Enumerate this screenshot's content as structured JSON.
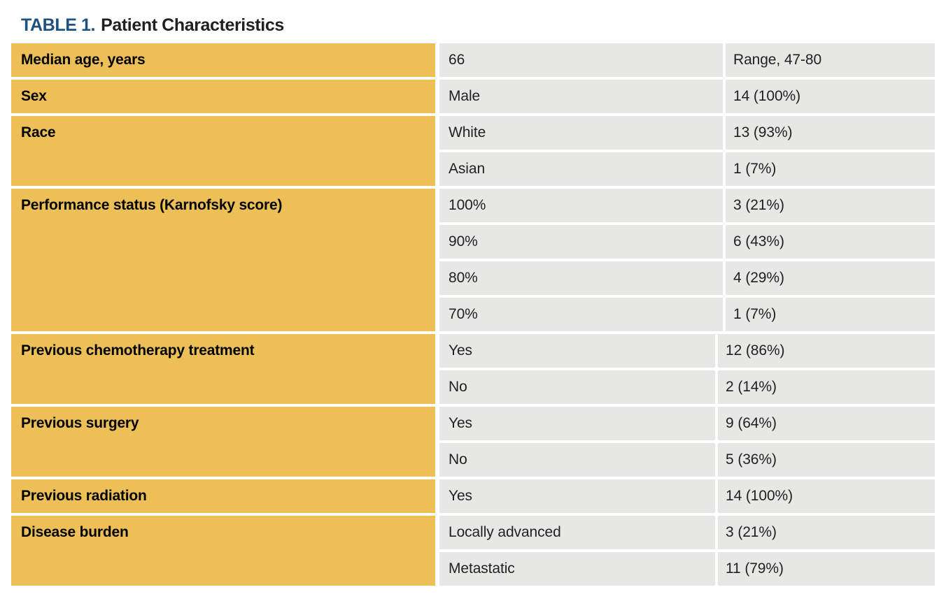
{
  "title": {
    "prefix": "TABLE 1.",
    "text": "Patient Characteristics"
  },
  "colors": {
    "header_yellow": "#ecc057",
    "cell_gray": "#e7e7e6",
    "title_blue": "#1e517f",
    "text_dark": "#231f20"
  },
  "table": {
    "groups": [
      {
        "label": "Median age, years",
        "rows": [
          {
            "value": "66",
            "stat": "Range, 47-80"
          }
        ]
      },
      {
        "label": "Sex",
        "rows": [
          {
            "value": "Male",
            "stat": "14 (100%)"
          }
        ]
      },
      {
        "label": "Race",
        "rows": [
          {
            "value": "White",
            "stat": "13 (93%)"
          },
          {
            "value": "Asian",
            "stat": "1 (7%)"
          }
        ]
      },
      {
        "label": "Performance status (Karnofsky score)",
        "rows": [
          {
            "value": "100%",
            "stat": "3 (21%)"
          },
          {
            "value": "90%",
            "stat": "6 (43%)"
          },
          {
            "value": "80%",
            "stat": "4 (29%)"
          },
          {
            "value": "70%",
            "stat": "1 (7%)"
          }
        ]
      },
      {
        "label": "Previous chemotherapy treatment",
        "rows": [
          {
            "value": "Yes",
            "stat": "12 (86%)"
          },
          {
            "value": "No",
            "stat": "2 (14%)"
          }
        ]
      },
      {
        "label": "Previous surgery",
        "rows": [
          {
            "value": "Yes",
            "stat": "9 (64%)"
          },
          {
            "value": "No",
            "stat": "5 (36%)"
          }
        ]
      },
      {
        "label": "Previous radiation",
        "rows": [
          {
            "value": "Yes",
            "stat": "14 (100%)"
          }
        ]
      },
      {
        "label": "Disease burden",
        "rows": [
          {
            "value": "Locally advanced",
            "stat": "3 (21%)"
          },
          {
            "value": "Metastatic",
            "stat": "11 (79%)"
          }
        ]
      }
    ]
  }
}
